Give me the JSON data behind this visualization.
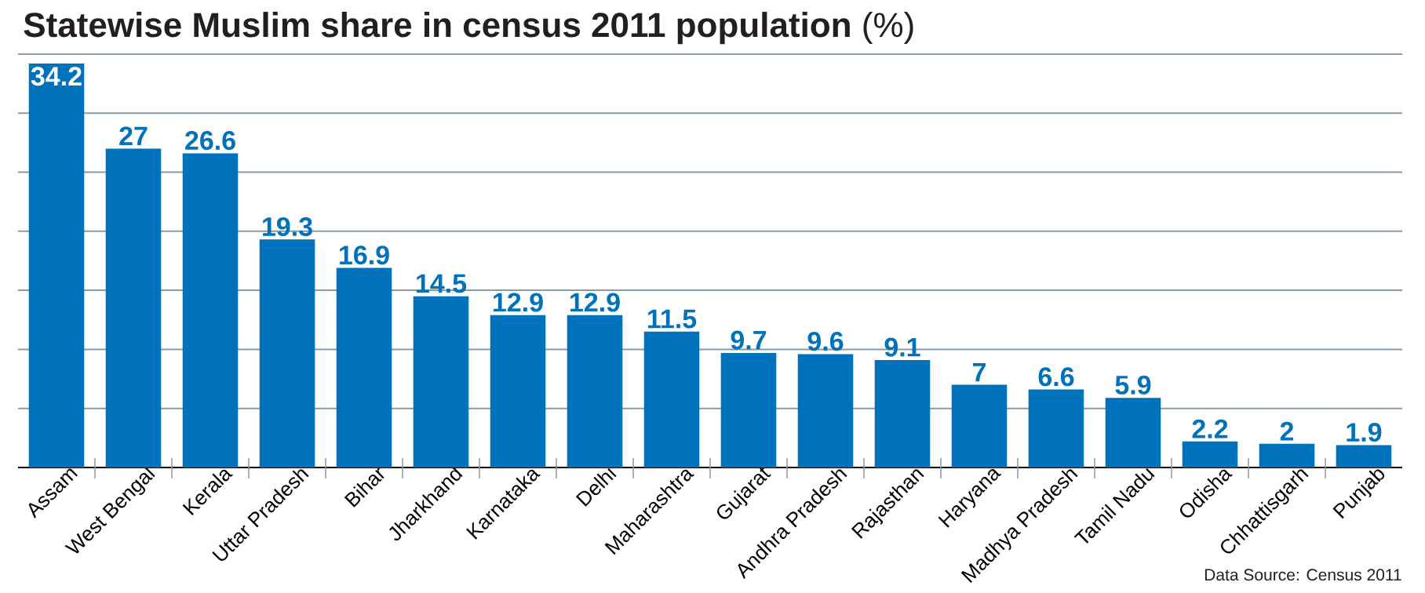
{
  "chart_data": {
    "type": "bar",
    "title": "**Statewise Muslim share in census 2011 population** (%)",
    "categories": [
      "Assam",
      "West Bengal",
      "Kerala",
      "Uttar Pradesh",
      "Bihar",
      "Jharkhand",
      "Karnataka",
      "Delhi",
      "Maharashtra",
      "Gujarat",
      "Andhra Pradesh",
      "Rajasthan",
      "Haryana",
      "Madhya Pradesh",
      "Tamil Nadu",
      "Odisha",
      "Chhattisgarh",
      "Punjab"
    ],
    "values": [
      34.2,
      27,
      26.6,
      19.3,
      16.9,
      14.5,
      12.9,
      12.9,
      11.5,
      9.7,
      9.6,
      9.1,
      7,
      6.6,
      5.9,
      2.2,
      2,
      1.9
    ],
    "color": "#0072bc",
    "grid": "y",
    "tick_labels": "x",
    "data_labels": true,
    "annotations": [
      "Data Source: Census 2011"
    ]
  }
}
